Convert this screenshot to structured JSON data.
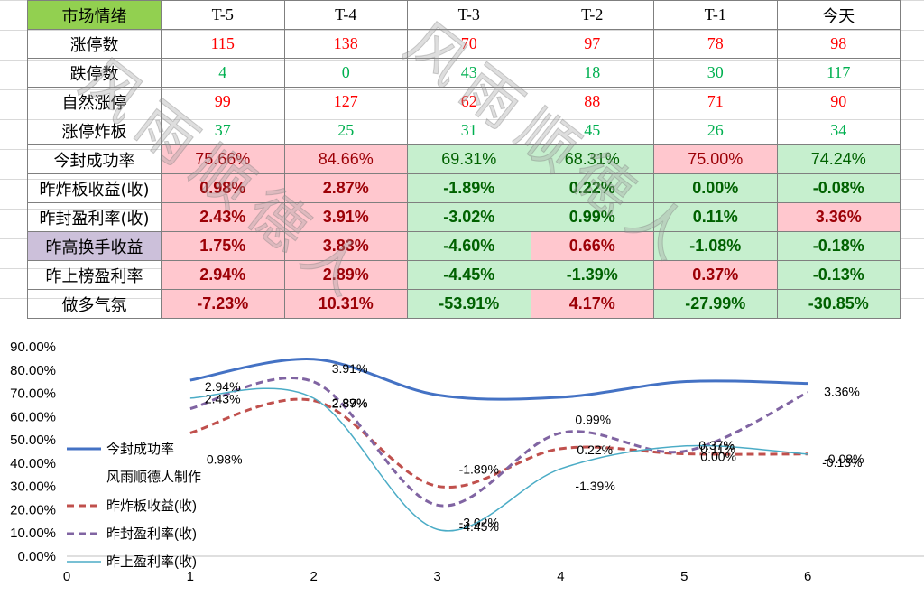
{
  "table": {
    "header_label": "市场情绪",
    "columns": [
      "T-5",
      "T-4",
      "T-3",
      "T-2",
      "T-1",
      "今天"
    ],
    "rows": [
      {
        "label": "涨停数",
        "values": [
          "115",
          "138",
          "70",
          "97",
          "78",
          "98"
        ]
      },
      {
        "label": "跌停数",
        "values": [
          "4",
          "0",
          "43",
          "18",
          "30",
          "117"
        ]
      },
      {
        "label": "自然涨停",
        "values": [
          "99",
          "127",
          "62",
          "88",
          "71",
          "90"
        ]
      },
      {
        "label": "涨停炸板",
        "values": [
          "37",
          "25",
          "31",
          "45",
          "26",
          "34"
        ]
      },
      {
        "label": "今封成功率",
        "values": [
          "75.66%",
          "84.66%",
          "69.31%",
          "68.31%",
          "75.00%",
          "74.24%"
        ]
      },
      {
        "label": "昨炸板收益(收)",
        "values": [
          "0.98%",
          "2.87%",
          "-1.89%",
          "0.22%",
          "0.00%",
          "-0.08%"
        ]
      },
      {
        "label": "昨封盈利率(收)",
        "values": [
          "2.43%",
          "3.91%",
          "-3.02%",
          "0.99%",
          "0.11%",
          "3.36%"
        ]
      },
      {
        "label": "昨高换手收益",
        "values": [
          "1.75%",
          "3.83%",
          "-4.60%",
          "0.66%",
          "-1.08%",
          "-0.18%"
        ]
      },
      {
        "label": "昨上榜盈利率",
        "values": [
          "2.94%",
          "2.89%",
          "-4.45%",
          "-1.39%",
          "0.37%",
          "-0.13%"
        ]
      },
      {
        "label": "做多气氛",
        "values": [
          "-7.23%",
          "10.31%",
          "-53.91%",
          "4.17%",
          "-27.99%",
          "-30.85%"
        ]
      }
    ],
    "colors": {
      "pink_bg": "#ffc7ce",
      "green_bg": "#c6efce",
      "pink_text": "#9c0006",
      "green_text": "#006100",
      "header_bg": "#92d050",
      "purple_bg": "#ccc0da",
      "red_text": "#ff0000",
      "green_count_text": "#00b050"
    }
  },
  "watermark": "风雨顺德人",
  "chart_data": {
    "type": "line",
    "x": [
      1,
      2,
      3,
      4,
      5,
      6
    ],
    "xticks": [
      "0",
      "1",
      "2",
      "3",
      "4",
      "5",
      "6"
    ],
    "xlim": [
      0,
      7
    ],
    "ylim": [
      0,
      90
    ],
    "yticks": [
      "0.00%",
      "10.00%",
      "20.00%",
      "30.00%",
      "40.00%",
      "50.00%",
      "60.00%",
      "70.00%",
      "80.00%",
      "90.00%"
    ],
    "legend_note": "风雨顺德人制作",
    "series": [
      {
        "name": "今封成功率",
        "color": "#4472c4",
        "width": 3,
        "dash": "",
        "values": [
          75.66,
          84.66,
          69.31,
          68.31,
          75.0,
          74.24
        ],
        "labels": []
      },
      {
        "name": "昨炸板收益(收)",
        "color": "#c0504d",
        "width": 3,
        "dash": "8,5",
        "values": [
          52.98,
          66.87,
          30.11,
          46.22,
          44.0,
          43.92
        ],
        "labels": [
          "0.98%",
          "2.87%",
          "-1.89%",
          "0.22%",
          "0.00%",
          "-0.08%"
        ]
      },
      {
        "name": "昨封盈利率(收)",
        "color": "#8064a2",
        "width": 3,
        "dash": "8,5",
        "values": [
          63.43,
          74.91,
          21.98,
          52.99,
          45.11,
          70.36
        ],
        "labels": [
          "2.43%",
          "3.91%",
          "-3.02%",
          "0.99%",
          "0.11%",
          "3.36%"
        ]
      },
      {
        "name": "昨上盈利率(收)",
        "color": "#4bacc6",
        "width": 1.5,
        "dash": "",
        "values": [
          67.94,
          67.89,
          11.55,
          37.61,
          47.37,
          43.87
        ],
        "labels": [
          "2.94%",
          "2.89%",
          "-4.45%",
          "-1.39%",
          "0.37%",
          "-0.13%"
        ]
      }
    ]
  }
}
